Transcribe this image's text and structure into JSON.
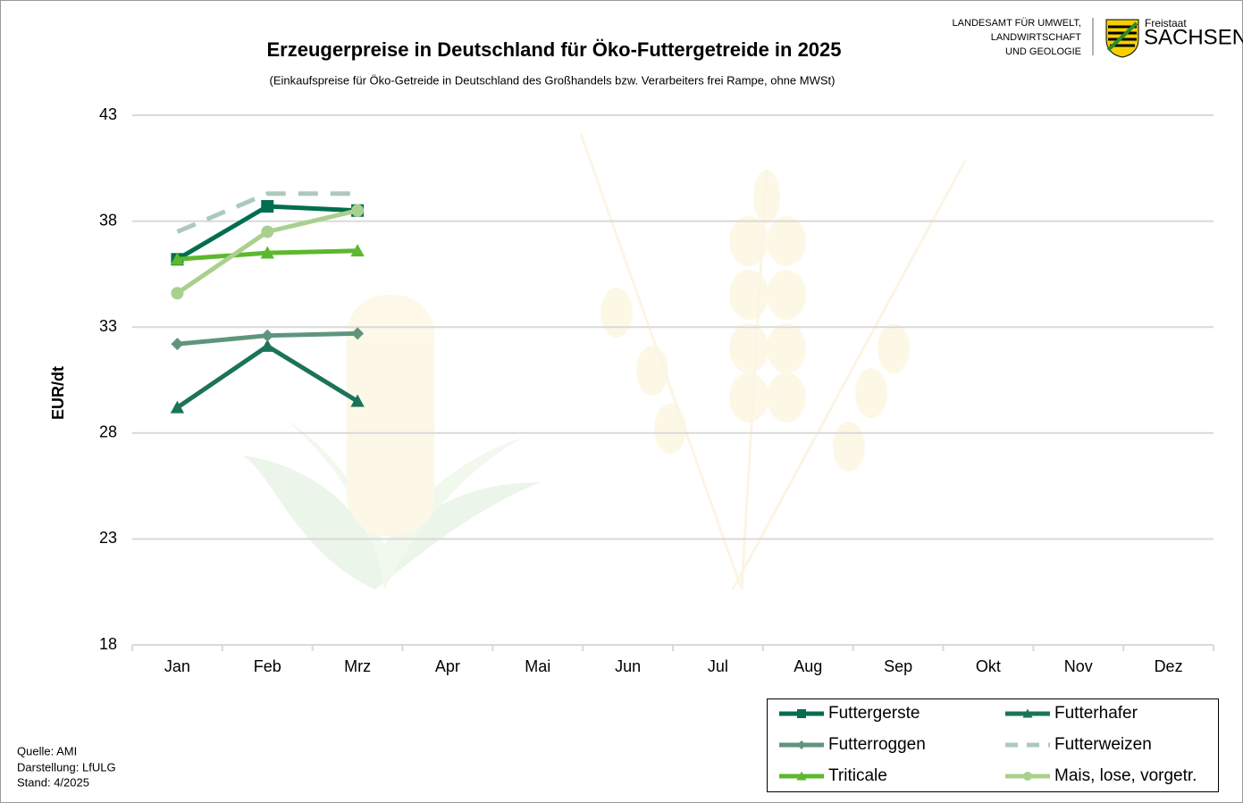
{
  "header": {
    "agency": [
      "LANDESAMT FÜR UMWELT,",
      "LANDWIRTSCHAFT",
      "UND GEOLOGIE"
    ],
    "state": [
      "Freistaat",
      "SACHSEN"
    ]
  },
  "chart_data": {
    "type": "line",
    "title": "Erzeugerpreise in Deutschland für Öko-Futtergetreide in 2025",
    "subtitle": "(Einkaufspreise für Öko-Getreide  in Deutschland des Großhandels bzw. Verarbeiters frei Rampe, ohne MWSt)",
    "y_label": "EUR/dt",
    "categories": [
      "Jan",
      "Feb",
      "Mrz",
      "Apr",
      "Mai",
      "Jun",
      "Jul",
      "Aug",
      "Sep",
      "Okt",
      "Nov",
      "Dez"
    ],
    "ylim": [
      18,
      43
    ],
    "yticks": [
      18,
      23,
      28,
      33,
      38,
      43
    ],
    "grid": true,
    "legend": "bottom-right",
    "series": [
      {
        "name": "Futtergerste",
        "color": "#006e4f",
        "marker": "square",
        "values": [
          36.2,
          38.7,
          38.5,
          null,
          null,
          null,
          null,
          null,
          null,
          null,
          null,
          null
        ]
      },
      {
        "name": "Futterhafer",
        "color": "#1b7358",
        "marker": "triangle",
        "values": [
          29.2,
          32.1,
          29.5,
          null,
          null,
          null,
          null,
          null,
          null,
          null,
          null,
          null
        ]
      },
      {
        "name": "Futterroggen",
        "color": "#5f957c",
        "marker": "diamond",
        "values": [
          32.2,
          32.6,
          32.7,
          null,
          null,
          null,
          null,
          null,
          null,
          null,
          null,
          null
        ]
      },
      {
        "name": "Futterweizen",
        "color": "#adc9bd",
        "marker": "none",
        "dashed": true,
        "values": [
          37.5,
          39.3,
          39.3,
          null,
          null,
          null,
          null,
          null,
          null,
          null,
          null,
          null
        ]
      },
      {
        "name": "Triticale",
        "color": "#5cb82e",
        "marker": "triangle",
        "values": [
          36.2,
          36.5,
          36.6,
          null,
          null,
          null,
          null,
          null,
          null,
          null,
          null,
          null
        ]
      },
      {
        "name": "Mais, lose, vorgetr.",
        "color": "#a9d08e",
        "marker": "circle",
        "values": [
          34.6,
          37.5,
          38.5,
          null,
          null,
          null,
          null,
          null,
          null,
          null,
          null,
          null
        ]
      }
    ],
    "notes": [
      "Quelle:  AMI",
      "Darstellung:  LfULG",
      "Stand:  4/2025"
    ]
  }
}
